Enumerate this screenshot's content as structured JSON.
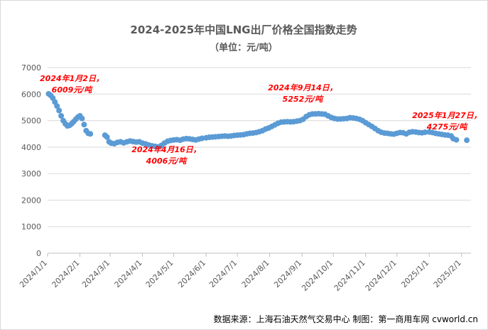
{
  "chart_data": {
    "type": "scatter",
    "title": "2024-2025年中国LNG出厂价格全国指数走势",
    "subtitle": "（单位：元/吨）",
    "xlabel": "",
    "ylabel": "",
    "ylim": [
      0,
      7000
    ],
    "xlim": [
      "2024-01-01",
      "2025-02-10"
    ],
    "y_ticks": [
      "0",
      "1000",
      "2000",
      "3000",
      "4000",
      "5000",
      "6000",
      "7000"
    ],
    "x_ticks": [
      {
        "date": "2024-01-01",
        "label": "2024/1/1"
      },
      {
        "date": "2024-02-01",
        "label": "2024/2/1"
      },
      {
        "date": "2024-03-01",
        "label": "2024/3/1"
      },
      {
        "date": "2024-04-01",
        "label": "2024/4/1"
      },
      {
        "date": "2024-05-01",
        "label": "2024/5/1"
      },
      {
        "date": "2024-06-01",
        "label": "2024/6/1"
      },
      {
        "date": "2024-07-01",
        "label": "2024/7/1"
      },
      {
        "date": "2024-08-01",
        "label": "2024/8/1"
      },
      {
        "date": "2024-09-01",
        "label": "2024/9/1"
      },
      {
        "date": "2024-10-01",
        "label": "2024/10/1"
      },
      {
        "date": "2024-11-01",
        "label": "2024/11/1"
      },
      {
        "date": "2024-12-01",
        "label": "2024/12/1"
      },
      {
        "date": "2025-01-01",
        "label": "2025/1/1"
      },
      {
        "date": "2025-02-01",
        "label": "2025/2/1"
      }
    ],
    "grid": true,
    "series_color": "#5b9bd5",
    "series": [
      {
        "points": [
          [
            "2024-01-02",
            6009
          ],
          [
            "2024-01-04",
            5950
          ],
          [
            "2024-01-06",
            5850
          ],
          [
            "2024-01-08",
            5700
          ],
          [
            "2024-01-10",
            5550
          ],
          [
            "2024-01-12",
            5380
          ],
          [
            "2024-01-14",
            5180
          ],
          [
            "2024-01-16",
            5000
          ],
          [
            "2024-01-18",
            4880
          ],
          [
            "2024-01-20",
            4800
          ],
          [
            "2024-01-22",
            4820
          ],
          [
            "2024-01-24",
            4880
          ],
          [
            "2024-01-26",
            4960
          ],
          [
            "2024-01-28",
            5050
          ],
          [
            "2024-01-30",
            5130
          ],
          [
            "2024-02-01",
            5180
          ],
          [
            "2024-02-03",
            5080
          ],
          [
            "2024-02-05",
            4850
          ],
          [
            "2024-02-07",
            4620
          ],
          [
            "2024-02-09",
            4520
          ],
          [
            "2024-02-11",
            4500
          ],
          [
            "2024-02-25",
            4450
          ],
          [
            "2024-02-27",
            4380
          ],
          [
            "2024-02-29",
            4200
          ],
          [
            "2024-03-02",
            4150
          ],
          [
            "2024-03-05",
            4130
          ],
          [
            "2024-03-08",
            4180
          ],
          [
            "2024-03-11",
            4200
          ],
          [
            "2024-03-14",
            4160
          ],
          [
            "2024-03-17",
            4200
          ],
          [
            "2024-03-20",
            4230
          ],
          [
            "2024-03-23",
            4210
          ],
          [
            "2024-03-26",
            4190
          ],
          [
            "2024-03-29",
            4200
          ],
          [
            "2024-04-01",
            4150
          ],
          [
            "2024-04-04",
            4120
          ],
          [
            "2024-04-07",
            4080
          ],
          [
            "2024-04-10",
            4050
          ],
          [
            "2024-04-13",
            4030
          ],
          [
            "2024-04-16",
            4006
          ],
          [
            "2024-04-19",
            4060
          ],
          [
            "2024-04-22",
            4150
          ],
          [
            "2024-04-25",
            4220
          ],
          [
            "2024-04-28",
            4250
          ],
          [
            "2024-05-01",
            4270
          ],
          [
            "2024-05-04",
            4280
          ],
          [
            "2024-05-07",
            4260
          ],
          [
            "2024-05-10",
            4300
          ],
          [
            "2024-05-13",
            4320
          ],
          [
            "2024-05-16",
            4310
          ],
          [
            "2024-05-19",
            4290
          ],
          [
            "2024-05-22",
            4270
          ],
          [
            "2024-05-25",
            4300
          ],
          [
            "2024-05-28",
            4330
          ],
          [
            "2024-06-01",
            4350
          ],
          [
            "2024-06-04",
            4370
          ],
          [
            "2024-06-07",
            4380
          ],
          [
            "2024-06-10",
            4390
          ],
          [
            "2024-06-13",
            4400
          ],
          [
            "2024-06-16",
            4410
          ],
          [
            "2024-06-19",
            4420
          ],
          [
            "2024-06-22",
            4410
          ],
          [
            "2024-06-25",
            4420
          ],
          [
            "2024-06-28",
            4440
          ],
          [
            "2024-07-01",
            4450
          ],
          [
            "2024-07-04",
            4460
          ],
          [
            "2024-07-07",
            4470
          ],
          [
            "2024-07-10",
            4500
          ],
          [
            "2024-07-13",
            4520
          ],
          [
            "2024-07-16",
            4530
          ],
          [
            "2024-07-19",
            4550
          ],
          [
            "2024-07-22",
            4580
          ],
          [
            "2024-07-25",
            4620
          ],
          [
            "2024-07-28",
            4680
          ],
          [
            "2024-07-31",
            4720
          ],
          [
            "2024-08-03",
            4780
          ],
          [
            "2024-08-06",
            4840
          ],
          [
            "2024-08-09",
            4900
          ],
          [
            "2024-08-12",
            4940
          ],
          [
            "2024-08-15",
            4950
          ],
          [
            "2024-08-18",
            4960
          ],
          [
            "2024-08-21",
            4950
          ],
          [
            "2024-08-24",
            4960
          ],
          [
            "2024-08-27",
            4980
          ],
          [
            "2024-08-30",
            5000
          ],
          [
            "2024-09-02",
            5050
          ],
          [
            "2024-09-05",
            5150
          ],
          [
            "2024-09-08",
            5220
          ],
          [
            "2024-09-11",
            5250
          ],
          [
            "2024-09-14",
            5252
          ],
          [
            "2024-09-17",
            5260
          ],
          [
            "2024-09-20",
            5250
          ],
          [
            "2024-09-23",
            5240
          ],
          [
            "2024-09-26",
            5180
          ],
          [
            "2024-09-29",
            5120
          ],
          [
            "2024-10-02",
            5080
          ],
          [
            "2024-10-05",
            5060
          ],
          [
            "2024-10-08",
            5060
          ],
          [
            "2024-10-11",
            5070
          ],
          [
            "2024-10-14",
            5080
          ],
          [
            "2024-10-17",
            5110
          ],
          [
            "2024-10-20",
            5100
          ],
          [
            "2024-10-23",
            5080
          ],
          [
            "2024-10-26",
            5050
          ],
          [
            "2024-10-29",
            5000
          ],
          [
            "2024-11-01",
            4920
          ],
          [
            "2024-11-04",
            4850
          ],
          [
            "2024-11-07",
            4780
          ],
          [
            "2024-11-10",
            4700
          ],
          [
            "2024-11-13",
            4620
          ],
          [
            "2024-11-16",
            4560
          ],
          [
            "2024-11-19",
            4530
          ],
          [
            "2024-11-22",
            4520
          ],
          [
            "2024-11-25",
            4500
          ],
          [
            "2024-11-28",
            4490
          ],
          [
            "2024-12-01",
            4520
          ],
          [
            "2024-12-04",
            4550
          ],
          [
            "2024-12-07",
            4540
          ],
          [
            "2024-12-10",
            4500
          ],
          [
            "2024-12-13",
            4560
          ],
          [
            "2024-12-16",
            4580
          ],
          [
            "2024-12-19",
            4570
          ],
          [
            "2024-12-22",
            4550
          ],
          [
            "2024-12-25",
            4540
          ],
          [
            "2024-12-28",
            4560
          ],
          [
            "2025-01-01",
            4570
          ],
          [
            "2025-01-04",
            4550
          ],
          [
            "2025-01-07",
            4520
          ],
          [
            "2025-01-10",
            4500
          ],
          [
            "2025-01-13",
            4480
          ],
          [
            "2025-01-16",
            4460
          ],
          [
            "2025-01-19",
            4450
          ],
          [
            "2025-01-22",
            4420
          ],
          [
            "2025-01-24",
            4320
          ],
          [
            "2025-01-27",
            4275
          ],
          [
            "2025-02-06",
            4260
          ]
        ]
      }
    ],
    "annotations": [
      {
        "lines": [
          "2024年1月2日，",
          "6009元/吨"
        ]
      },
      {
        "lines": [
          "2024年4月16日，",
          "4006元/吨"
        ]
      },
      {
        "lines": [
          "2024年9月14日，",
          "5252元/吨"
        ]
      },
      {
        "lines": [
          "2025年1月27日，",
          "4275元/吨"
        ]
      }
    ],
    "annotation_color": "#ff0000"
  },
  "source": "数据来源：上海石油天然气交易中心 制图：第一商用车网 cvworld.cn"
}
